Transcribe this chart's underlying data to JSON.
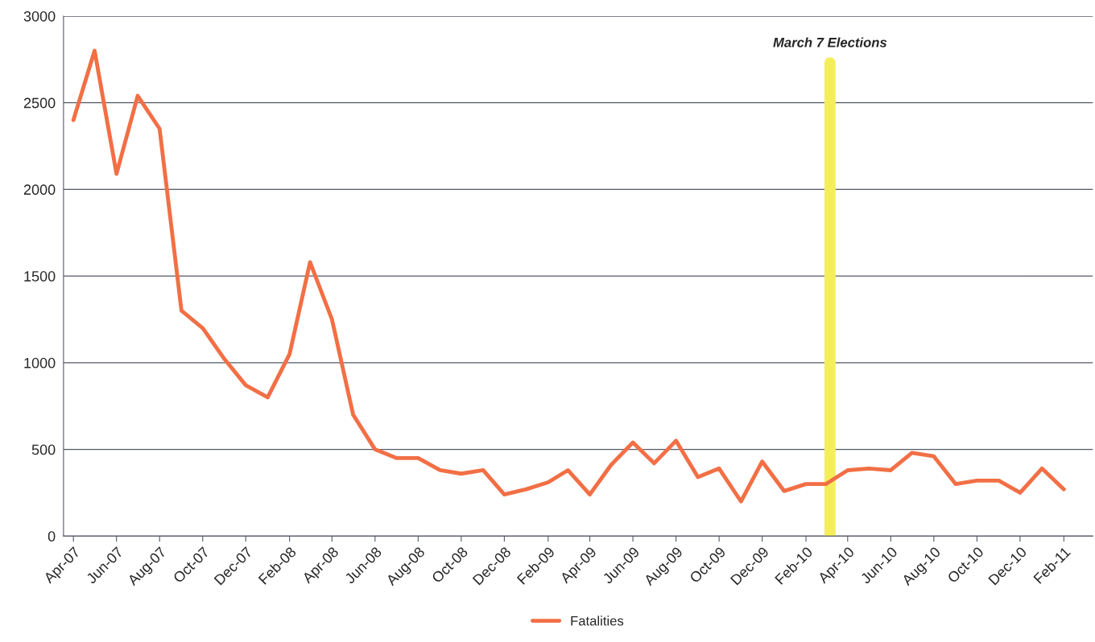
{
  "chart_data": {
    "type": "line",
    "x": [
      "2007-04",
      "2007-05",
      "2007-06",
      "2007-07",
      "2007-08",
      "2007-09",
      "2007-10",
      "2007-11",
      "2007-12",
      "2008-01",
      "2008-02",
      "2008-03",
      "2008-04",
      "2008-05",
      "2008-06",
      "2008-07",
      "2008-08",
      "2008-09",
      "2008-10",
      "2008-11",
      "2008-12",
      "2009-01",
      "2009-02",
      "2009-03",
      "2009-04",
      "2009-05",
      "2009-06",
      "2009-07",
      "2009-08",
      "2009-09",
      "2009-10",
      "2009-11",
      "2009-12",
      "2010-01",
      "2010-02",
      "2010-03",
      "2010-04",
      "2010-05",
      "2010-06",
      "2010-07",
      "2010-08",
      "2010-09",
      "2010-10",
      "2010-11",
      "2010-12",
      "2011-01",
      "2011-02"
    ],
    "series": [
      {
        "name": "Fatalities",
        "color": "#f26f45",
        "values": [
          2400,
          2800,
          2090,
          2540,
          2350,
          1300,
          1200,
          1020,
          870,
          800,
          1050,
          1580,
          1250,
          700,
          500,
          450,
          450,
          380,
          360,
          380,
          240,
          270,
          310,
          380,
          240,
          410,
          540,
          420,
          550,
          340,
          390,
          200,
          430,
          260,
          300,
          300,
          380,
          390,
          380,
          480,
          460,
          300,
          320,
          320,
          250,
          390,
          270
        ]
      }
    ],
    "xlim": [
      "2007-03-18",
      "2011-03-14"
    ],
    "xticks": [
      {
        "value": "2007-04",
        "label": "Apr-07"
      },
      {
        "value": "2007-06",
        "label": "Jun-07"
      },
      {
        "value": "2007-08",
        "label": "Aug-07"
      },
      {
        "value": "2007-10",
        "label": "Oct-07"
      },
      {
        "value": "2007-12",
        "label": "Dec-07"
      },
      {
        "value": "2008-02",
        "label": "Feb-08"
      },
      {
        "value": "2008-04",
        "label": "Apr-08"
      },
      {
        "value": "2008-06",
        "label": "Jun-08"
      },
      {
        "value": "2008-08",
        "label": "Aug-08"
      },
      {
        "value": "2008-10",
        "label": "Oct-08"
      },
      {
        "value": "2008-12",
        "label": "Dec-08"
      },
      {
        "value": "2009-02",
        "label": "Feb-09"
      },
      {
        "value": "2009-04",
        "label": "Apr-09"
      },
      {
        "value": "2009-06",
        "label": "Jun-09"
      },
      {
        "value": "2009-08",
        "label": "Aug-09"
      },
      {
        "value": "2009-10",
        "label": "Oct-09"
      },
      {
        "value": "2009-12",
        "label": "Dec-09"
      },
      {
        "value": "2010-02",
        "label": "Feb-10"
      },
      {
        "value": "2010-04",
        "label": "Apr-10"
      },
      {
        "value": "2010-06",
        "label": "Jun-10"
      },
      {
        "value": "2010-08",
        "label": "Aug-10"
      },
      {
        "value": "2010-10",
        "label": "Oct-10"
      },
      {
        "value": "2010-12",
        "label": "Dec-10"
      },
      {
        "value": "2011-02",
        "label": "Feb-11"
      }
    ],
    "ylim": [
      0,
      3000
    ],
    "yticks": [
      0,
      500,
      1000,
      1500,
      2000,
      2500,
      3000
    ],
    "grid": "y",
    "legend": "bottom",
    "marker": "none",
    "line_style": "solid",
    "ref_lines": [
      {
        "axis": "x",
        "value": "2010-03-07",
        "label": "March 7 Elections",
        "color": "#f5ee5c"
      }
    ]
  }
}
